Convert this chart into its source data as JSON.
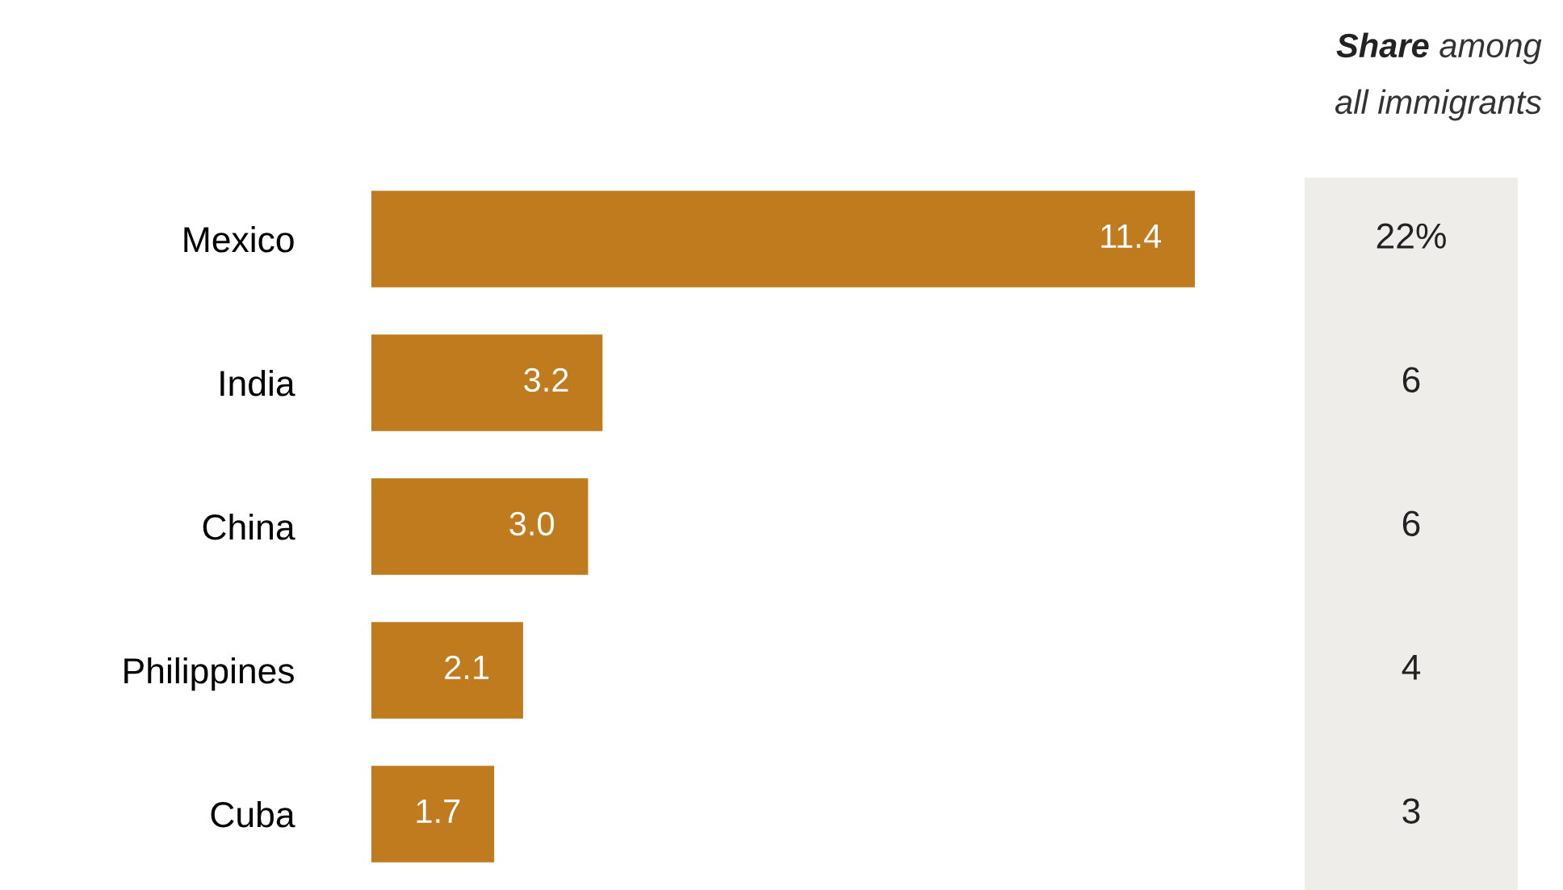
{
  "chart_data": [
    {
      "type": "bar",
      "orientation": "horizontal",
      "categories": [
        "Mexico",
        "India",
        "China",
        "Philippines",
        "Cuba"
      ],
      "values": [
        11.4,
        3.2,
        3.0,
        2.1,
        1.7
      ],
      "value_labels": [
        "11.4",
        "3.2",
        "3.0",
        "2.1",
        "1.7"
      ],
      "color": "#bf7b1e",
      "grid": false,
      "legend": false,
      "tick_labels": "y"
    },
    {
      "type": "other",
      "title": "Share among\nall immigrants",
      "values": [
        22,
        6,
        6,
        4,
        3
      ],
      "value_labels": [
        "22%",
        "6",
        "6",
        "4",
        "3"
      ],
      "color": "#efede9"
    }
  ]
}
